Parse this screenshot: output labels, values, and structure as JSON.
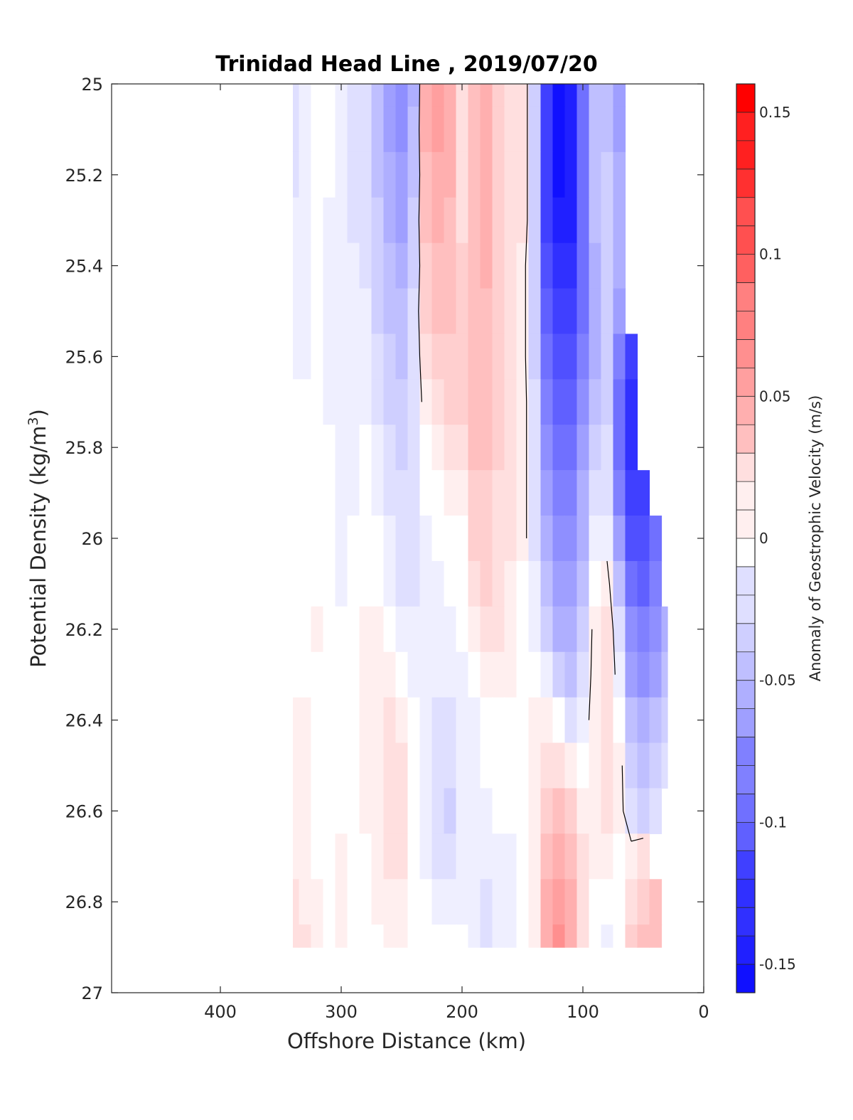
{
  "chart_data": {
    "type": "heatmap",
    "title": "Trinidad Head Line , 2019/07/20",
    "xlabel": "Offshore Distance (km)",
    "ylabel_prefix": "Potential Density (kg/m",
    "ylabel_sup": "3",
    "ylabel_suffix": ")",
    "colorbar_label": "Anomaly of Geostrophic Velocity (m/s)",
    "xlim": [
      490,
      0
    ],
    "ylim": [
      25,
      27
    ],
    "y_reversed": true,
    "x_reversed": true,
    "xticks": [
      400,
      300,
      200,
      100,
      0
    ],
    "xtick_labels": [
      "400",
      "300",
      "200",
      "100",
      "0"
    ],
    "yticks": [
      25,
      25.2,
      25.4,
      25.6,
      25.8,
      26,
      26.2,
      26.4,
      26.6,
      26.8,
      27
    ],
    "ytick_labels": [
      "25",
      "25.2",
      "25.4",
      "25.6",
      "25.8",
      "26",
      "26.2",
      "26.4",
      "26.6",
      "26.8",
      "27"
    ],
    "clim": [
      -0.16,
      0.16
    ],
    "colorbar_ticks": [
      0.15,
      0.1,
      0.05,
      0,
      -0.05,
      -0.1,
      -0.15
    ],
    "colorbar_tick_labels": [
      "0.15",
      "0.1",
      "0.05",
      "0",
      "-0.05",
      "-0.1",
      "-0.15"
    ],
    "colormap": {
      "negative": "#0000ff",
      "zero": "#ffffff",
      "positive": "#ff0000"
    },
    "contour_color": "#000000",
    "contour_level": 0,
    "x_data": [
      340,
      330,
      320,
      310,
      300,
      290,
      280,
      270,
      260,
      250,
      240,
      230,
      220,
      210,
      200,
      190,
      180,
      170,
      160,
      150,
      140,
      130,
      120,
      110,
      100,
      90,
      80,
      70,
      60,
      50,
      40,
      30
    ],
    "y_data": [
      25.0,
      25.1,
      25.2,
      25.3,
      25.4,
      25.5,
      25.6,
      25.7,
      25.8,
      25.9,
      26.0,
      26.1,
      26.2,
      26.3,
      26.4,
      26.5,
      26.6,
      26.7,
      26.8,
      26.9
    ],
    "velocity_anomaly": [
      [
        -0.02,
        -0.01,
        0.0,
        0.0,
        -0.01,
        -0.02,
        -0.02,
        -0.04,
        -0.06,
        -0.07,
        -0.05,
        0.05,
        0.06,
        0.05,
        0.02,
        0.04,
        0.05,
        0.03,
        0.02,
        0.02,
        -0.03,
        -0.12,
        -0.15,
        -0.14,
        -0.09,
        -0.04,
        -0.04,
        -0.06,
        null,
        null,
        null,
        null
      ],
      [
        -0.02,
        -0.01,
        0.0,
        0.0,
        -0.01,
        -0.02,
        -0.02,
        -0.04,
        -0.06,
        -0.07,
        -0.04,
        0.05,
        0.06,
        0.05,
        0.02,
        0.04,
        0.05,
        0.03,
        0.02,
        0.02,
        -0.03,
        -0.12,
        -0.15,
        -0.14,
        -0.09,
        -0.04,
        -0.04,
        -0.06,
        null,
        null,
        null,
        null
      ],
      [
        -0.02,
        -0.01,
        0.0,
        0.0,
        -0.01,
        -0.02,
        -0.02,
        -0.04,
        -0.05,
        -0.06,
        -0.04,
        0.04,
        0.05,
        0.05,
        0.02,
        0.04,
        0.05,
        0.03,
        0.02,
        0.02,
        -0.03,
        -0.12,
        -0.15,
        -0.14,
        -0.09,
        -0.04,
        -0.03,
        -0.05,
        null,
        null,
        null,
        null
      ],
      [
        -0.01,
        -0.01,
        0.0,
        -0.01,
        -0.01,
        -0.02,
        -0.02,
        -0.03,
        -0.05,
        -0.06,
        -0.03,
        0.04,
        0.05,
        0.04,
        0.02,
        0.04,
        0.05,
        0.03,
        0.02,
        0.02,
        -0.03,
        -0.12,
        -0.14,
        -0.14,
        -0.09,
        -0.04,
        -0.03,
        -0.05,
        null,
        null,
        null,
        null
      ],
      [
        -0.01,
        -0.01,
        0.0,
        -0.01,
        -0.01,
        -0.01,
        -0.02,
        -0.03,
        -0.04,
        -0.05,
        -0.03,
        0.03,
        0.04,
        0.04,
        0.03,
        0.04,
        0.05,
        0.03,
        0.02,
        0.01,
        -0.03,
        -0.11,
        -0.13,
        -0.13,
        -0.09,
        -0.05,
        -0.03,
        -0.05,
        null,
        null,
        null,
        null
      ],
      [
        -0.01,
        -0.01,
        0.0,
        -0.01,
        -0.01,
        -0.01,
        -0.01,
        -0.03,
        -0.04,
        -0.04,
        -0.02,
        0.03,
        0.04,
        0.04,
        0.03,
        0.04,
        0.04,
        0.03,
        0.02,
        0.01,
        -0.03,
        -0.1,
        -0.12,
        -0.12,
        -0.09,
        -0.05,
        -0.03,
        -0.06,
        null,
        null,
        null,
        null
      ],
      [
        -0.01,
        -0.01,
        0.0,
        -0.01,
        -0.01,
        -0.01,
        -0.01,
        -0.02,
        -0.03,
        -0.04,
        -0.02,
        0.02,
        0.03,
        0.03,
        0.03,
        0.04,
        0.04,
        0.03,
        0.02,
        0.01,
        -0.03,
        -0.09,
        -0.11,
        -0.11,
        -0.08,
        -0.05,
        -0.03,
        -0.08,
        -0.12,
        null,
        null,
        null
      ],
      [
        0.0,
        0.0,
        0.0,
        -0.01,
        -0.01,
        -0.01,
        -0.01,
        -0.02,
        -0.03,
        -0.03,
        -0.02,
        0.01,
        0.02,
        0.03,
        0.03,
        0.04,
        0.04,
        0.03,
        0.02,
        0.01,
        -0.02,
        -0.08,
        -0.1,
        -0.1,
        -0.07,
        -0.04,
        -0.03,
        -0.09,
        -0.13,
        null,
        null,
        null
      ],
      [
        0.0,
        0.0,
        0.0,
        0.0,
        -0.01,
        -0.01,
        0.0,
        -0.01,
        -0.02,
        -0.03,
        -0.02,
        0.0,
        0.01,
        0.02,
        0.02,
        0.04,
        0.04,
        0.03,
        0.02,
        0.01,
        -0.02,
        -0.07,
        -0.09,
        -0.09,
        -0.06,
        -0.03,
        -0.02,
        -0.09,
        -0.13,
        null,
        null,
        null
      ],
      [
        0.0,
        0.0,
        0.0,
        0.0,
        -0.01,
        -0.01,
        0.0,
        -0.01,
        -0.02,
        -0.02,
        -0.02,
        0.0,
        0.0,
        0.01,
        0.01,
        0.03,
        0.03,
        0.02,
        0.02,
        0.01,
        -0.02,
        -0.06,
        -0.08,
        -0.08,
        -0.05,
        -0.02,
        -0.02,
        -0.08,
        -0.12,
        -0.12,
        null,
        null
      ],
      [
        0.0,
        0.0,
        0.0,
        0.0,
        -0.01,
        0.0,
        0.0,
        0.0,
        -0.01,
        -0.02,
        -0.02,
        -0.01,
        0.0,
        0.0,
        0.0,
        0.03,
        0.03,
        0.02,
        0.02,
        0.01,
        -0.02,
        -0.05,
        -0.07,
        -0.07,
        -0.05,
        -0.01,
        -0.01,
        -0.06,
        -0.11,
        -0.11,
        -0.09,
        null
      ],
      [
        0.0,
        0.0,
        0.0,
        0.0,
        -0.01,
        0.0,
        0.0,
        0.0,
        -0.01,
        -0.02,
        -0.02,
        -0.01,
        -0.01,
        0.0,
        0.0,
        0.02,
        0.03,
        0.02,
        0.01,
        0.0,
        -0.01,
        -0.04,
        -0.06,
        -0.06,
        -0.04,
        0.0,
        0.01,
        -0.04,
        -0.09,
        -0.1,
        -0.08,
        null
      ],
      [
        0.0,
        0.0,
        0.01,
        0.0,
        0.0,
        0.0,
        0.01,
        0.01,
        0.0,
        -0.01,
        -0.01,
        -0.01,
        -0.01,
        -0.01,
        0.0,
        0.01,
        0.02,
        0.02,
        0.01,
        0.0,
        -0.01,
        -0.03,
        -0.05,
        -0.05,
        -0.03,
        0.01,
        0.02,
        -0.02,
        -0.07,
        -0.08,
        -0.07,
        -0.05
      ],
      [
        0.0,
        0.0,
        0.0,
        0.0,
        0.0,
        0.0,
        0.01,
        0.01,
        0.01,
        0.0,
        -0.01,
        -0.01,
        -0.01,
        -0.01,
        -0.01,
        0.0,
        0.01,
        0.01,
        0.01,
        0.0,
        0.0,
        -0.01,
        -0.03,
        -0.04,
        -0.02,
        0.01,
        0.02,
        -0.01,
        -0.06,
        -0.07,
        -0.06,
        -0.04
      ],
      [
        0.01,
        0.01,
        0.0,
        0.0,
        0.0,
        0.0,
        0.01,
        0.01,
        0.02,
        0.01,
        0.0,
        -0.01,
        -0.02,
        -0.02,
        -0.01,
        -0.01,
        0.0,
        0.0,
        0.0,
        0.0,
        0.01,
        0.01,
        0.0,
        -0.02,
        -0.01,
        0.01,
        0.02,
        0.0,
        -0.04,
        -0.05,
        -0.04,
        -0.03
      ],
      [
        0.01,
        0.01,
        0.0,
        0.0,
        0.0,
        0.0,
        0.01,
        0.01,
        0.02,
        0.02,
        0.0,
        -0.01,
        -0.02,
        -0.02,
        -0.01,
        -0.01,
        0.0,
        0.0,
        0.0,
        0.0,
        0.01,
        0.02,
        0.02,
        0.01,
        0.0,
        0.01,
        0.02,
        0.01,
        -0.03,
        -0.04,
        -0.03,
        -0.02
      ],
      [
        0.01,
        0.01,
        0.0,
        0.0,
        0.0,
        0.0,
        0.01,
        0.01,
        0.02,
        0.02,
        0.0,
        -0.01,
        -0.02,
        -0.03,
        -0.01,
        -0.01,
        -0.01,
        0.0,
        0.0,
        0.0,
        0.01,
        0.03,
        0.04,
        0.03,
        0.01,
        0.01,
        0.02,
        0.01,
        -0.02,
        -0.03,
        -0.02,
        null
      ],
      [
        0.01,
        0.01,
        0.0,
        0.0,
        0.01,
        0.0,
        0.0,
        0.01,
        0.02,
        0.02,
        0.0,
        -0.01,
        -0.02,
        -0.02,
        -0.01,
        -0.01,
        -0.01,
        -0.01,
        -0.01,
        0.0,
        0.01,
        0.04,
        0.05,
        0.04,
        0.02,
        0.01,
        0.01,
        0.0,
        0.01,
        0.02,
        null,
        null
      ],
      [
        0.02,
        0.01,
        0.01,
        0.0,
        0.01,
        0.0,
        0.0,
        0.01,
        0.01,
        0.01,
        0.0,
        0.0,
        -0.01,
        -0.01,
        -0.01,
        -0.01,
        -0.02,
        -0.01,
        -0.01,
        0.0,
        0.01,
        0.05,
        0.06,
        0.05,
        0.02,
        0.0,
        0.0,
        0.0,
        0.02,
        0.03,
        0.04,
        null
      ],
      [
        0.02,
        0.02,
        0.01,
        0.0,
        0.01,
        0.0,
        0.0,
        0.0,
        0.01,
        0.01,
        0.0,
        0.0,
        0.0,
        0.0,
        0.0,
        -0.01,
        -0.02,
        -0.01,
        -0.01,
        0.0,
        0.01,
        0.05,
        0.07,
        0.05,
        0.02,
        0.0,
        -0.01,
        0.0,
        0.03,
        0.04,
        0.04,
        null
      ]
    ]
  }
}
